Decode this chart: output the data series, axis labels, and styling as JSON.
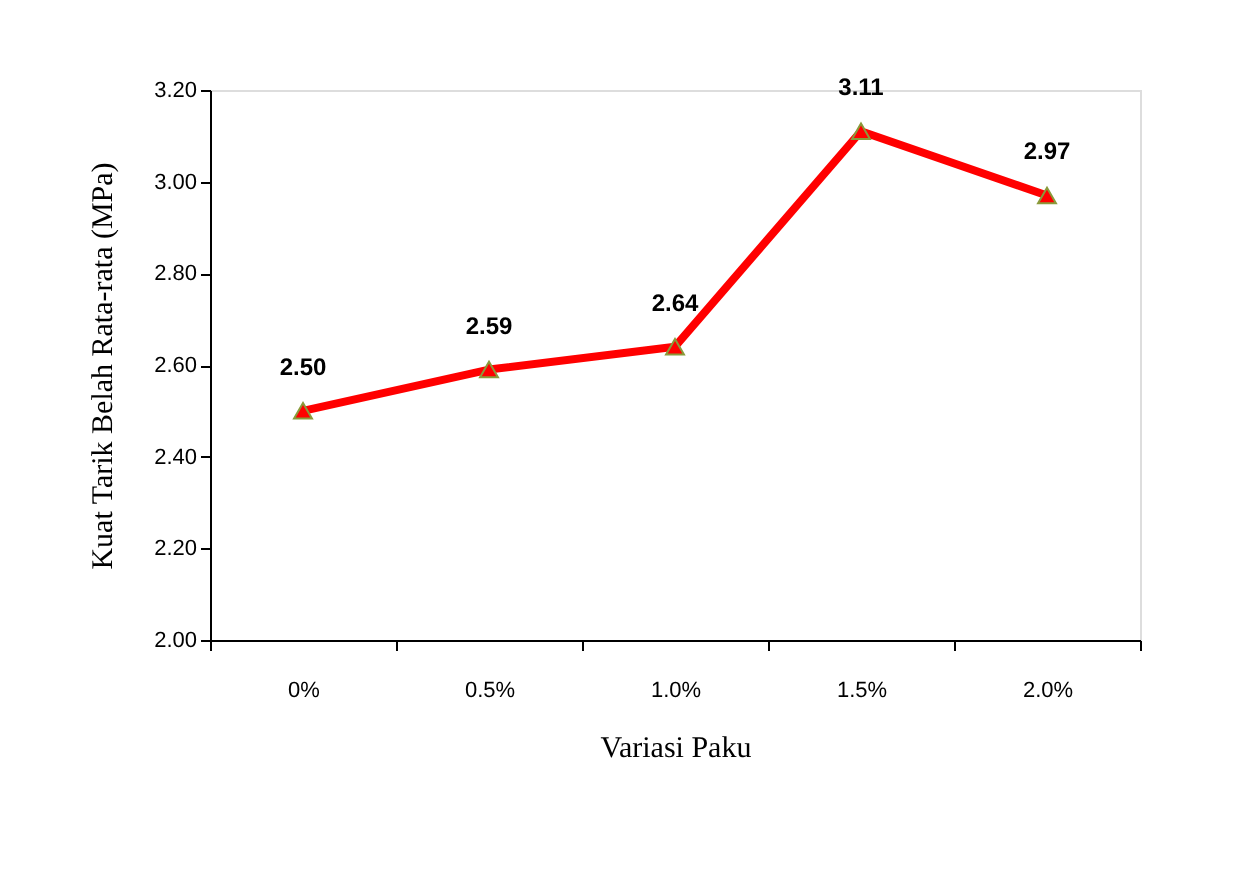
{
  "chart_data": {
    "type": "line",
    "xlabel": "Variasi Paku",
    "ylabel": "Kuat  Tarik Belah Rata-rata  (MPa)",
    "categories": [
      "0%",
      "0.5%",
      "1.0%",
      "1.5%",
      "2.0%"
    ],
    "series": [
      {
        "color": "#ff0000",
        "values": [
          2.5,
          2.59,
          2.64,
          3.11,
          2.97
        ],
        "value_labels": [
          "2.50",
          "2.59",
          "2.64",
          "3.11",
          "2.97"
        ]
      }
    ],
    "ylim": [
      2.0,
      3.2
    ],
    "yticks": [
      {
        "value": 2.0,
        "label": "2.00"
      },
      {
        "value": 2.2,
        "label": "2.20"
      },
      {
        "value": 2.4,
        "label": "2.40"
      },
      {
        "value": 2.6,
        "label": "2.60"
      },
      {
        "value": 2.8,
        "label": "2.80"
      },
      {
        "value": 3.0,
        "label": "3.00"
      },
      {
        "value": 3.2,
        "label": "3.20"
      }
    ],
    "grid": false,
    "marker": "triangle",
    "line_style": "solid"
  }
}
